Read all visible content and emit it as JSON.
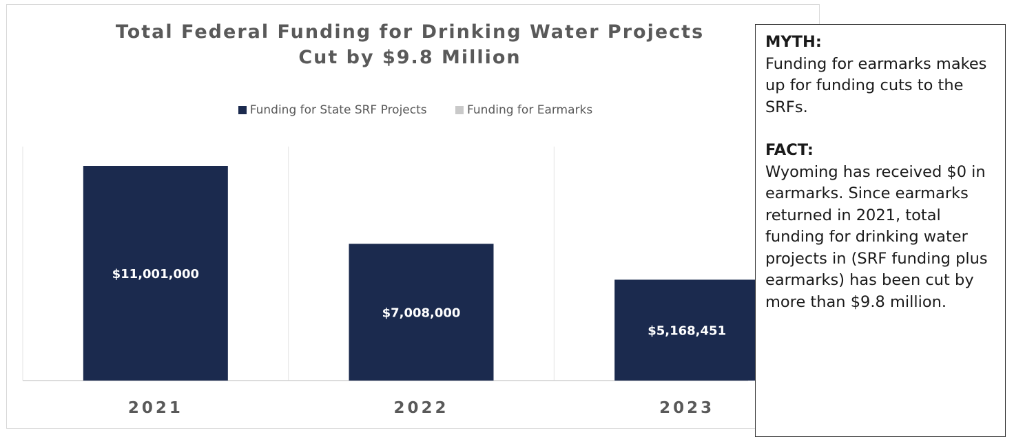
{
  "chart_data": {
    "type": "bar",
    "title_lines": [
      "Total Federal Funding for Drinking Water Projects",
      "Cut by $9.8 Million"
    ],
    "categories": [
      "2021",
      "2022",
      "2023"
    ],
    "series": [
      {
        "name": "Funding for State SRF Projects",
        "color": "#1b2a4e",
        "values": [
          11001000,
          7008000,
          5168451
        ],
        "labels": [
          "$11,001,000",
          "$7,008,000",
          "$5,168,451"
        ]
      },
      {
        "name": "Funding for Earmarks",
        "color": "#c9c9c9",
        "values": [
          0,
          0,
          0
        ]
      }
    ],
    "xlabel": "",
    "ylabel": "",
    "ylim": [
      0,
      12000000
    ],
    "grid": "vertical separators",
    "legend_position": "top"
  },
  "callout": {
    "myth_heading": "MYTH:",
    "myth_text": "Funding for earmarks makes up for funding cuts to the SRFs.",
    "fact_heading": "FACT:",
    "fact_text": "Wyoming has received $0 in earmarks. Since earmarks returned in 2021, total funding for drinking water projects in (SRF funding plus earmarks) has been cut by more than $9.8 million."
  }
}
